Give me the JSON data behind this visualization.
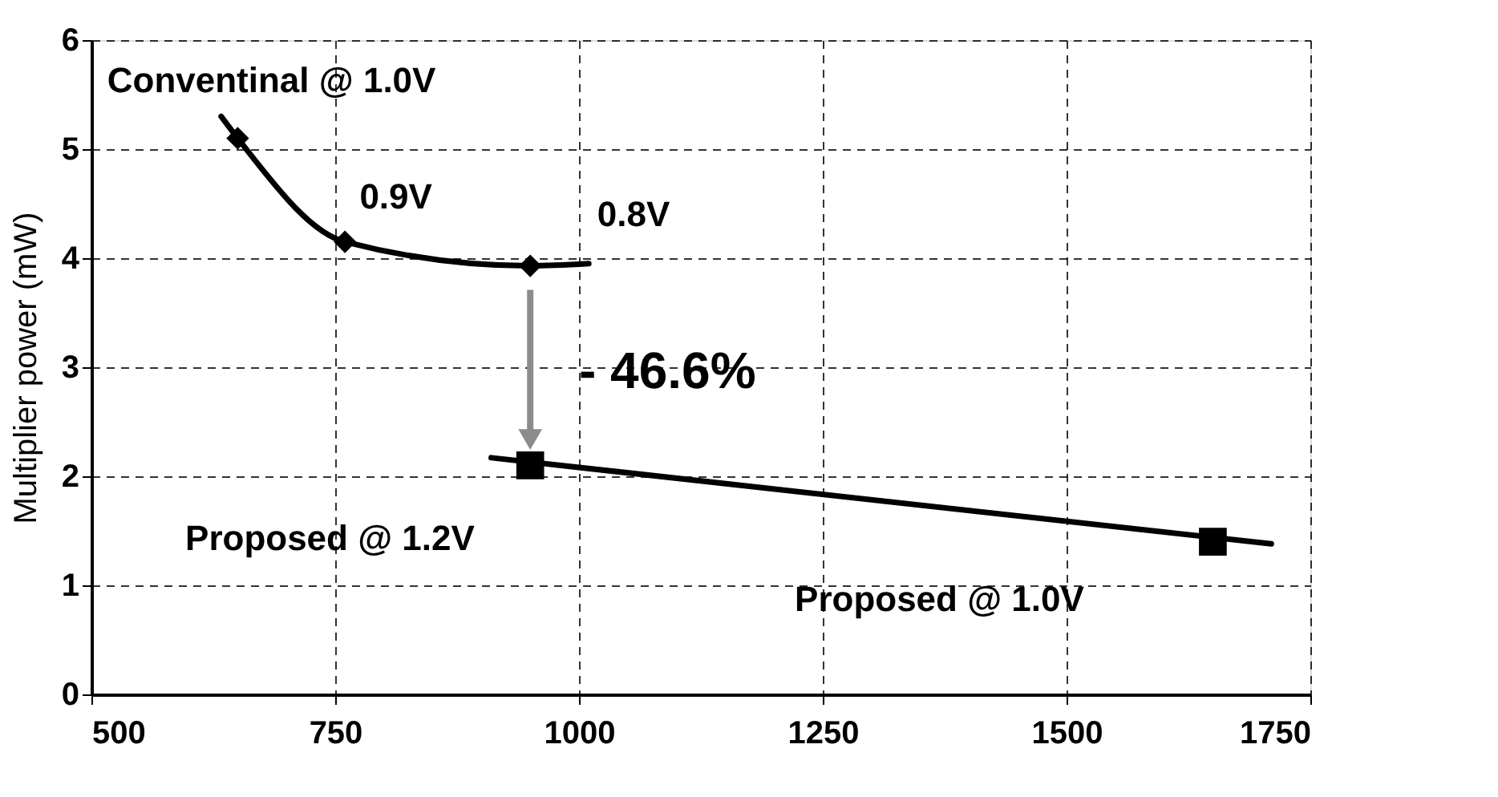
{
  "chart_data": {
    "type": "line",
    "ylabel": "Multiplier power (mW)",
    "xlim": [
      500,
      1750
    ],
    "xticks": [
      500,
      750,
      1000,
      1250,
      1500,
      1750
    ],
    "ylim": [
      0,
      6
    ],
    "yticks": [
      0,
      1,
      2,
      3,
      4,
      5,
      6
    ],
    "grid": true,
    "series": [
      {
        "type": "line",
        "color": "#000000",
        "marker": "none",
        "x": [
          633,
          650,
          760,
          950,
          1010
        ],
        "values": [
          5.3,
          5.1,
          4.15,
          3.93,
          3.95
        ]
      },
      {
        "type": "scatter",
        "color": "#000000",
        "marker": "diamond",
        "x": [
          650,
          760,
          950
        ],
        "values": [
          5.1,
          4.15,
          3.93
        ]
      },
      {
        "type": "line",
        "color": "#000000",
        "marker": "none",
        "x": [
          910,
          1710
        ],
        "values": [
          2.17,
          1.38
        ]
      },
      {
        "type": "scatter",
        "color": "#000000",
        "marker": "square",
        "x": [
          950,
          1650
        ],
        "values": [
          2.1,
          1.4
        ]
      }
    ],
    "annotations": [
      "Conventinal @ 1.0V",
      "0.9V",
      "0.8V",
      "- 46.6%",
      "Proposed @ 1.2V",
      "Proposed @ 1.0V"
    ]
  }
}
